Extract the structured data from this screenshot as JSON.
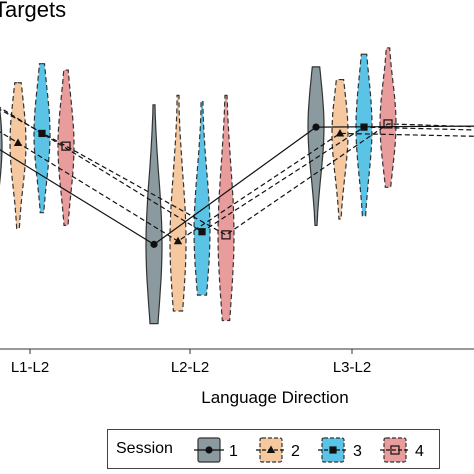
{
  "chart_data": {
    "type": "violin",
    "title": "Targets",
    "xlabel": "Language Direction",
    "ylabel": "",
    "categories": [
      "L1-L2",
      "L2-L2",
      "L3-L2"
    ],
    "legend": {
      "title": "Session",
      "position": "bottom",
      "entries": [
        "1",
        "2",
        "3",
        "4"
      ]
    },
    "grid": false,
    "series": [
      {
        "name": "1",
        "fill": "#8a9a9f",
        "dashed": false,
        "marker": "circle",
        "values": [
          0.64,
          0.33,
          0.7
        ],
        "ranges": [
          [
            0.4,
            0.86
          ],
          [
            0.08,
            0.77
          ],
          [
            0.39,
            0.89
          ]
        ]
      },
      {
        "name": "2",
        "fill": "#f6c8a0",
        "dashed": true,
        "marker": "triangle",
        "values": [
          0.65,
          0.34,
          0.68
        ],
        "ranges": [
          [
            0.38,
            0.84
          ],
          [
            0.12,
            0.8
          ],
          [
            0.41,
            0.85
          ]
        ]
      },
      {
        "name": "3",
        "fill": "#5bc4e6",
        "dashed": true,
        "marker": "square",
        "values": [
          0.68,
          0.37,
          0.7
        ],
        "ranges": [
          [
            0.43,
            0.9
          ],
          [
            0.17,
            0.78
          ],
          [
            0.42,
            0.93
          ]
        ]
      },
      {
        "name": "4",
        "fill": "#e89c9c",
        "dashed": true,
        "marker": "square-open",
        "values": [
          0.64,
          0.36,
          0.71
        ],
        "ranges": [
          [
            0.39,
            0.88
          ],
          [
            0.09,
            0.8
          ],
          [
            0.51,
            0.95
          ]
        ]
      }
    ]
  }
}
